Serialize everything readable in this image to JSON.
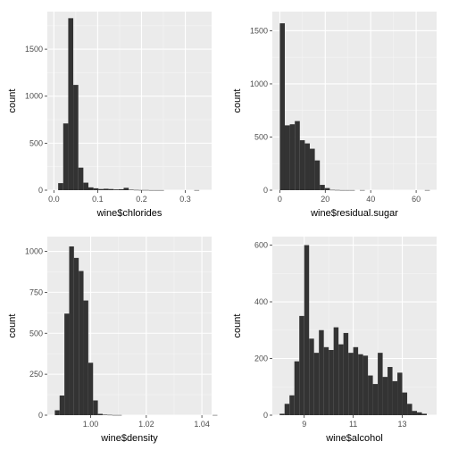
{
  "colors": {
    "background": "#ffffff",
    "panel": "#ebebeb",
    "grid_major": "#ffffff",
    "grid_minor": "#f5f5f5",
    "bar": "#333333",
    "tick_text": "#4d4d4d",
    "axis_title": "#000000"
  },
  "chart_data": [
    {
      "type": "bar",
      "subtype": "histogram",
      "xlabel": "wine$chlorides",
      "ylabel": "count",
      "xlim": [
        -0.015,
        0.36
      ],
      "ylim": [
        0,
        1900
      ],
      "xticks": [
        0.0,
        0.1,
        0.2,
        0.3
      ],
      "xtick_labels": [
        "0.0",
        "0.1",
        "0.2",
        "0.3"
      ],
      "yticks": [
        0,
        500,
        1000,
        1500
      ],
      "ytick_labels": [
        "0",
        "500",
        "1000",
        "1500"
      ],
      "grid": true,
      "bin_start": 0.00975,
      "bin_width": 0.0115,
      "values": [
        75,
        710,
        1830,
        1120,
        240,
        80,
        30,
        20,
        12,
        15,
        12,
        8,
        10,
        25,
        5,
        3,
        2,
        2,
        1,
        1,
        1,
        0,
        0,
        0,
        0,
        0,
        0,
        1
      ]
    },
    {
      "type": "bar",
      "subtype": "histogram",
      "xlabel": "wine$residual.sugar",
      "ylabel": "count",
      "xlim": [
        -3.3,
        69
      ],
      "ylim": [
        0,
        1680
      ],
      "xticks": [
        0,
        20,
        40,
        60
      ],
      "xtick_labels": [
        "0",
        "20",
        "40",
        "60"
      ],
      "yticks": [
        0,
        500,
        1000,
        1500
      ],
      "ytick_labels": [
        "0",
        "500",
        "1000",
        "1500"
      ],
      "grid": true,
      "bin_start": 0,
      "bin_width": 2.2,
      "values": [
        1570,
        610,
        620,
        650,
        470,
        440,
        390,
        280,
        50,
        20,
        3,
        2,
        1,
        1,
        1,
        0,
        1,
        0,
        0,
        0,
        0,
        0,
        0,
        0,
        0,
        0,
        0,
        0,
        0,
        1
      ]
    },
    {
      "type": "bar",
      "subtype": "histogram",
      "xlabel": "wine$density",
      "ylabel": "count",
      "xlim": [
        0.9844,
        1.0435
      ],
      "ylim": [
        0,
        1090
      ],
      "xticks": [
        1.0,
        1.02,
        1.04
      ],
      "xtick_labels": [
        "1.00",
        "1.02",
        "1.04"
      ],
      "yticks": [
        0,
        250,
        500,
        750,
        1000
      ],
      "ytick_labels": [
        "0",
        "250",
        "500",
        "750",
        "1000"
      ],
      "grid": true,
      "bin_start": 0.9871,
      "bin_width": 0.00172,
      "values": [
        30,
        120,
        620,
        1030,
        960,
        880,
        700,
        320,
        90,
        8,
        3,
        2,
        1,
        1,
        0,
        0,
        0,
        0,
        0,
        0,
        0,
        0,
        0,
        0,
        0,
        0,
        0,
        0,
        0,
        0,
        0,
        0,
        0,
        1
      ]
    },
    {
      "type": "bar",
      "subtype": "histogram",
      "xlabel": "wine$alcohol",
      "ylabel": "count",
      "xlim": [
        7.7,
        14.4
      ],
      "ylim": [
        0,
        630
      ],
      "xticks": [
        9,
        11,
        13
      ],
      "xtick_labels": [
        "9",
        "11",
        "13"
      ],
      "yticks": [
        0,
        200,
        400,
        600
      ],
      "ytick_labels": [
        "0",
        "200",
        "400",
        "600"
      ],
      "grid": true,
      "bin_start": 8.0,
      "bin_width": 0.2,
      "values": [
        5,
        40,
        70,
        190,
        350,
        600,
        270,
        220,
        300,
        240,
        230,
        310,
        250,
        290,
        220,
        240,
        215,
        210,
        140,
        110,
        220,
        135,
        170,
        120,
        150,
        80,
        40,
        15,
        10,
        5
      ]
    }
  ]
}
